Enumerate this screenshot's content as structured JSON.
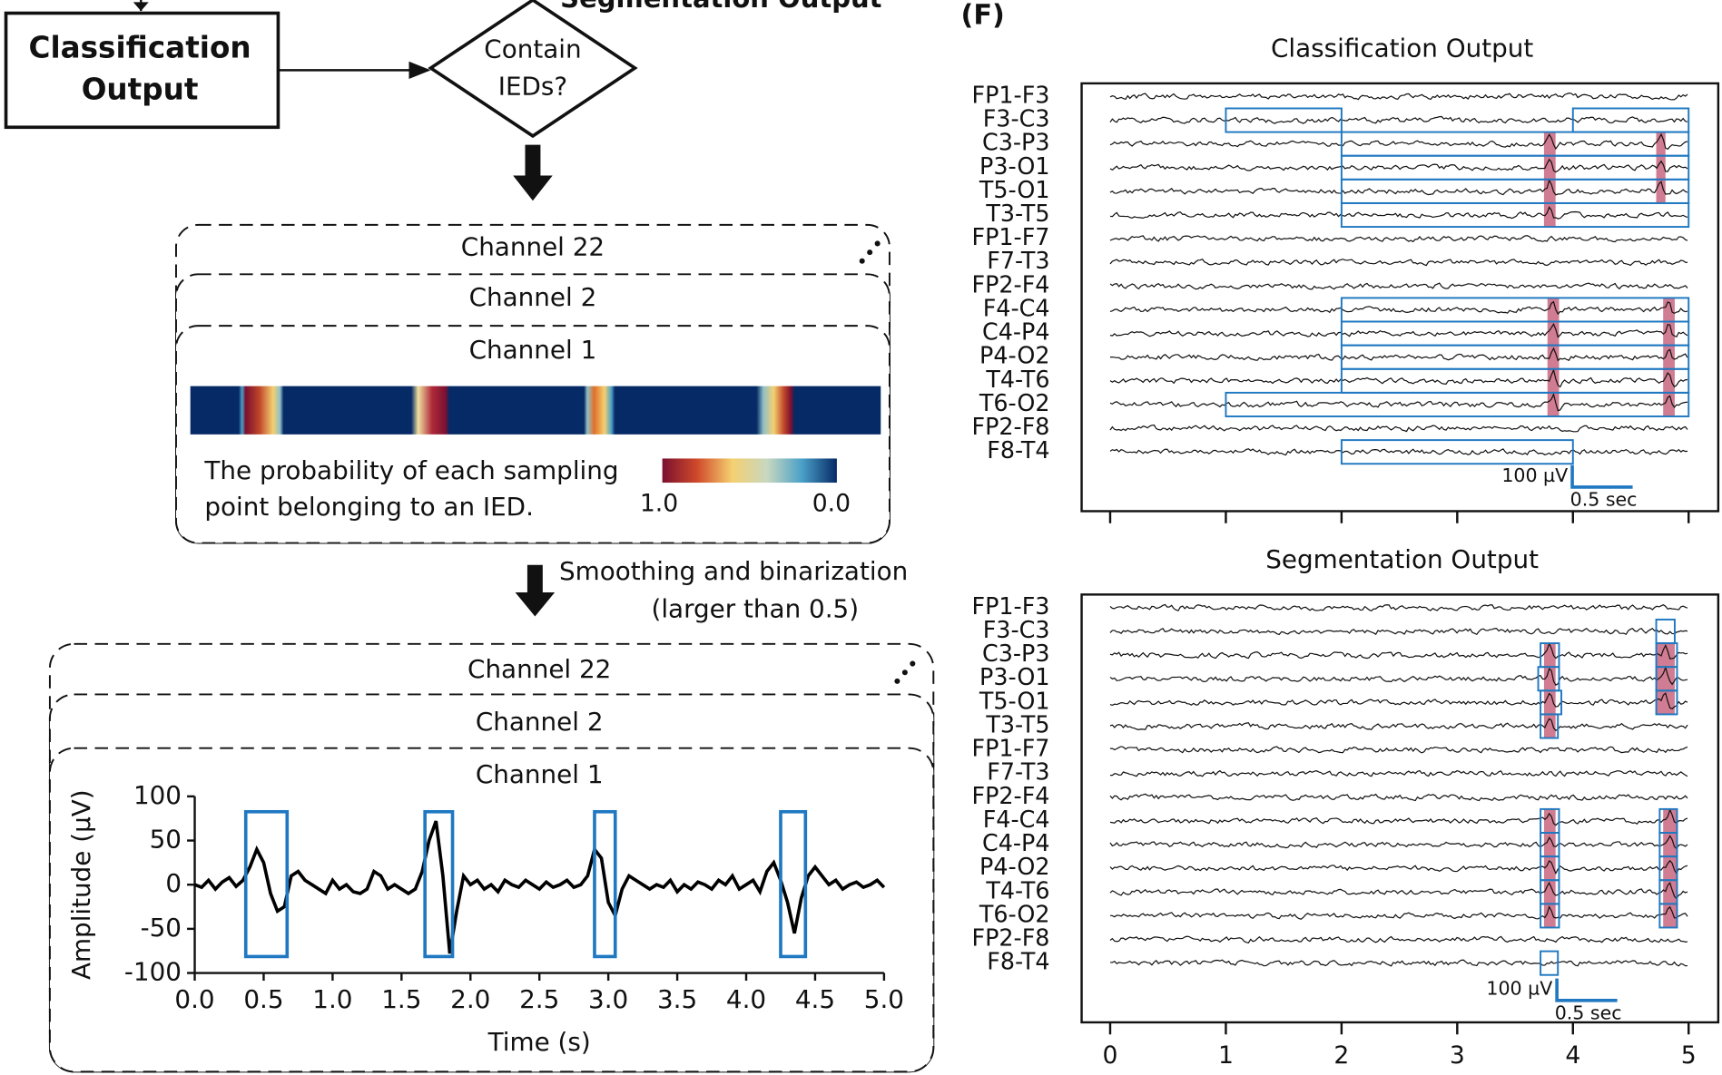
{
  "diagram": {
    "top_box": [
      "Classification",
      "Output"
    ],
    "decision": [
      "Contain",
      "IEDs?"
    ],
    "cut_label": "Segmentation Output",
    "stack1": [
      "Channel 22",
      "Channel 2",
      "Channel 1"
    ],
    "probability_note": [
      "The probability of each sampling",
      "point belonging to an IED."
    ],
    "colorbar_labels": [
      "1.0",
      "0.0"
    ],
    "step": [
      "Smoothing and binarization",
      "(larger than 0.5)"
    ],
    "stack2": [
      "Channel 22",
      "Channel 2",
      "Channel 1"
    ]
  },
  "chart_data": [
    {
      "type": "line",
      "xlabel": "Time (s)",
      "ylabel": "Amplitude (µV)",
      "color": "#000000",
      "box_color": "#1f78c1",
      "xlim": [
        0,
        5
      ],
      "ylim": [
        -100,
        100
      ],
      "xticks": [
        {
          "value": 0,
          "label": "0.0"
        },
        {
          "value": 0.5,
          "label": "0.5"
        },
        {
          "value": 1,
          "label": "1.0"
        },
        {
          "value": 1.5,
          "label": "1.5"
        },
        {
          "value": 2,
          "label": "2.0"
        },
        {
          "value": 2.5,
          "label": "2.5"
        },
        {
          "value": 3,
          "label": "3.0"
        },
        {
          "value": 3.5,
          "label": "3.5"
        },
        {
          "value": 4,
          "label": "4.0"
        },
        {
          "value": 4.5,
          "label": "4.5"
        },
        {
          "value": 5,
          "label": "5.0"
        }
      ],
      "yticks": [
        -100,
        -50,
        0,
        50,
        100
      ],
      "x": [
        0,
        0.05,
        0.1,
        0.15,
        0.2,
        0.25,
        0.3,
        0.35,
        0.4,
        0.45,
        0.5,
        0.55,
        0.6,
        0.65,
        0.7,
        0.75,
        0.8,
        0.85,
        0.9,
        0.95,
        1,
        1.05,
        1.1,
        1.15,
        1.2,
        1.25,
        1.3,
        1.35,
        1.4,
        1.45,
        1.5,
        1.55,
        1.6,
        1.65,
        1.7,
        1.75,
        1.8,
        1.85,
        1.9,
        1.95,
        2,
        2.05,
        2.1,
        2.15,
        2.2,
        2.25,
        2.3,
        2.35,
        2.4,
        2.45,
        2.5,
        2.55,
        2.6,
        2.65,
        2.7,
        2.75,
        2.8,
        2.85,
        2.9,
        2.95,
        3,
        3.05,
        3.1,
        3.15,
        3.2,
        3.25,
        3.3,
        3.35,
        3.4,
        3.45,
        3.5,
        3.55,
        3.6,
        3.65,
        3.7,
        3.75,
        3.8,
        3.85,
        3.9,
        3.95,
        4,
        4.05,
        4.1,
        4.15,
        4.2,
        4.25,
        4.3,
        4.35,
        4.4,
        4.45,
        4.5,
        4.55,
        4.6,
        4.65,
        4.7,
        4.75,
        4.8,
        4.85,
        4.9,
        4.95,
        5
      ],
      "values": [
        0,
        -3,
        5,
        -5,
        3,
        8,
        -2,
        5,
        20,
        40,
        25,
        -10,
        -30,
        -25,
        10,
        15,
        5,
        0,
        -5,
        -10,
        5,
        -5,
        0,
        -8,
        -10,
        -5,
        15,
        10,
        -5,
        0,
        -5,
        -10,
        -5,
        15,
        50,
        72,
        10,
        -78,
        -30,
        10,
        0,
        5,
        -5,
        0,
        -8,
        5,
        0,
        -3,
        5,
        0,
        -5,
        3,
        -3,
        0,
        5,
        -3,
        0,
        10,
        40,
        30,
        -20,
        -35,
        -5,
        10,
        5,
        0,
        -5,
        0,
        -3,
        5,
        -8,
        0,
        -5,
        3,
        0,
        -5,
        5,
        0,
        10,
        -5,
        0,
        5,
        -8,
        15,
        25,
        5,
        -20,
        -55,
        -15,
        10,
        20,
        10,
        0,
        5,
        -5,
        0,
        3,
        -3,
        0,
        5,
        -3
      ],
      "boxes": [
        [
          0.37,
          0.67
        ],
        [
          1.67,
          1.87
        ],
        [
          2.9,
          3.05
        ],
        [
          4.25,
          4.43
        ]
      ]
    },
    {
      "type": "eeg",
      "panel_label": "(F)",
      "title": "Classification Output",
      "xlim": [
        0,
        5
      ],
      "xticks": [
        0,
        1,
        2,
        3,
        4,
        5
      ],
      "tick_labels": false,
      "box_color": "#1f78c1",
      "highlight_color": "#c0506e",
      "scale_bar": {
        "amplitude": "100 µV",
        "time": "0.5 sec"
      },
      "channels": [
        {
          "label": "FP1-F3",
          "boxes": [],
          "highlights": []
        },
        {
          "label": "F3-C3",
          "boxes": [
            [
              1,
              2
            ],
            [
              4,
              5
            ]
          ],
          "highlights": []
        },
        {
          "label": "C3-P3",
          "boxes": [
            [
              2,
              5
            ]
          ],
          "highlights": [
            [
              3.75,
              3.85
            ],
            [
              4.72,
              4.8
            ]
          ]
        },
        {
          "label": "P3-O1",
          "boxes": [
            [
              2,
              5
            ]
          ],
          "highlights": [
            [
              3.75,
              3.85
            ],
            [
              4.72,
              4.8
            ]
          ]
        },
        {
          "label": "T5-O1",
          "boxes": [
            [
              2,
              5
            ]
          ],
          "highlights": [
            [
              3.75,
              3.85
            ],
            [
              4.72,
              4.8
            ]
          ]
        },
        {
          "label": "T3-T5",
          "boxes": [
            [
              2,
              5
            ]
          ],
          "highlights": [
            [
              3.75,
              3.85
            ]
          ]
        },
        {
          "label": "FP1-F7",
          "boxes": [],
          "highlights": []
        },
        {
          "label": "F7-T3",
          "boxes": [],
          "highlights": []
        },
        {
          "label": "FP2-F4",
          "boxes": [],
          "highlights": []
        },
        {
          "label": "F4-C4",
          "boxes": [
            [
              2,
              5
            ]
          ],
          "highlights": [
            [
              3.78,
              3.88
            ],
            [
              4.78,
              4.88
            ]
          ]
        },
        {
          "label": "C4-P4",
          "boxes": [
            [
              2,
              5
            ]
          ],
          "highlights": [
            [
              3.78,
              3.88
            ],
            [
              4.78,
              4.88
            ]
          ]
        },
        {
          "label": "P4-O2",
          "boxes": [
            [
              2,
              5
            ]
          ],
          "highlights": [
            [
              3.78,
              3.88
            ],
            [
              4.78,
              4.88
            ]
          ]
        },
        {
          "label": "T4-T6",
          "boxes": [
            [
              2,
              5
            ]
          ],
          "highlights": [
            [
              3.78,
              3.88
            ],
            [
              4.78,
              4.88
            ]
          ]
        },
        {
          "label": "T6-O2",
          "boxes": [
            [
              1,
              5
            ]
          ],
          "highlights": [
            [
              3.78,
              3.88
            ],
            [
              4.78,
              4.88
            ]
          ]
        },
        {
          "label": "FP2-F8",
          "boxes": [],
          "highlights": []
        },
        {
          "label": "F8-T4",
          "boxes": [
            [
              2,
              4
            ]
          ],
          "highlights": []
        }
      ]
    },
    {
      "type": "eeg",
      "title": "Segmentation Output",
      "xlim": [
        0,
        5
      ],
      "xticks": [
        0,
        1,
        2,
        3,
        4,
        5
      ],
      "tick_labels": true,
      "box_color": "#1f78c1",
      "highlight_color": "#c0506e",
      "scale_bar": {
        "amplitude": "100 µV",
        "time": "0.5 sec"
      },
      "channels": [
        {
          "label": "FP1-F3",
          "boxes": [],
          "highlights": []
        },
        {
          "label": "F3-C3",
          "boxes": [
            [
              4.72,
              4.88
            ]
          ],
          "highlights": []
        },
        {
          "label": "C3-P3",
          "boxes": [
            [
              3.72,
              3.88
            ],
            [
              4.72,
              4.9
            ]
          ],
          "highlights": [
            [
              3.75,
              3.85
            ],
            [
              4.72,
              4.88
            ]
          ]
        },
        {
          "label": "P3-O1",
          "boxes": [
            [
              3.7,
              3.88
            ],
            [
              4.72,
              4.9
            ]
          ],
          "highlights": [
            [
              3.75,
              3.85
            ],
            [
              4.72,
              4.88
            ]
          ]
        },
        {
          "label": "T5-O1",
          "boxes": [
            [
              3.72,
              3.9
            ],
            [
              4.72,
              4.9
            ]
          ],
          "highlights": [
            [
              3.75,
              3.85
            ],
            [
              4.72,
              4.88
            ]
          ]
        },
        {
          "label": "T3-T5",
          "boxes": [
            [
              3.72,
              3.87
            ]
          ],
          "highlights": [
            [
              3.75,
              3.85
            ]
          ]
        },
        {
          "label": "FP1-F7",
          "boxes": [],
          "highlights": []
        },
        {
          "label": "F7-T3",
          "boxes": [],
          "highlights": []
        },
        {
          "label": "FP2-F4",
          "boxes": [],
          "highlights": []
        },
        {
          "label": "F4-C4",
          "boxes": [
            [
              3.72,
              3.88
            ],
            [
              4.75,
              4.9
            ]
          ],
          "highlights": [
            [
              3.75,
              3.85
            ],
            [
              4.78,
              4.9
            ]
          ]
        },
        {
          "label": "C4-P4",
          "boxes": [
            [
              3.72,
              3.88
            ],
            [
              4.75,
              4.9
            ]
          ],
          "highlights": [
            [
              3.75,
              3.85
            ],
            [
              4.78,
              4.9
            ]
          ]
        },
        {
          "label": "P4-O2",
          "boxes": [
            [
              3.72,
              3.88
            ],
            [
              4.75,
              4.9
            ]
          ],
          "highlights": [
            [
              3.75,
              3.85
            ],
            [
              4.78,
              4.9
            ]
          ]
        },
        {
          "label": "T4-T6",
          "boxes": [
            [
              3.72,
              3.88
            ],
            [
              4.75,
              4.9
            ]
          ],
          "highlights": [
            [
              3.75,
              3.85
            ],
            [
              4.78,
              4.9
            ]
          ]
        },
        {
          "label": "T6-O2",
          "boxes": [
            [
              3.72,
              3.88
            ],
            [
              4.75,
              4.9
            ]
          ],
          "highlights": [
            [
              3.75,
              3.85
            ],
            [
              4.78,
              4.9
            ]
          ]
        },
        {
          "label": "FP2-F8",
          "boxes": [],
          "highlights": []
        },
        {
          "label": "F8-T4",
          "boxes": [
            [
              3.72,
              3.87
            ]
          ],
          "highlights": []
        }
      ]
    }
  ]
}
